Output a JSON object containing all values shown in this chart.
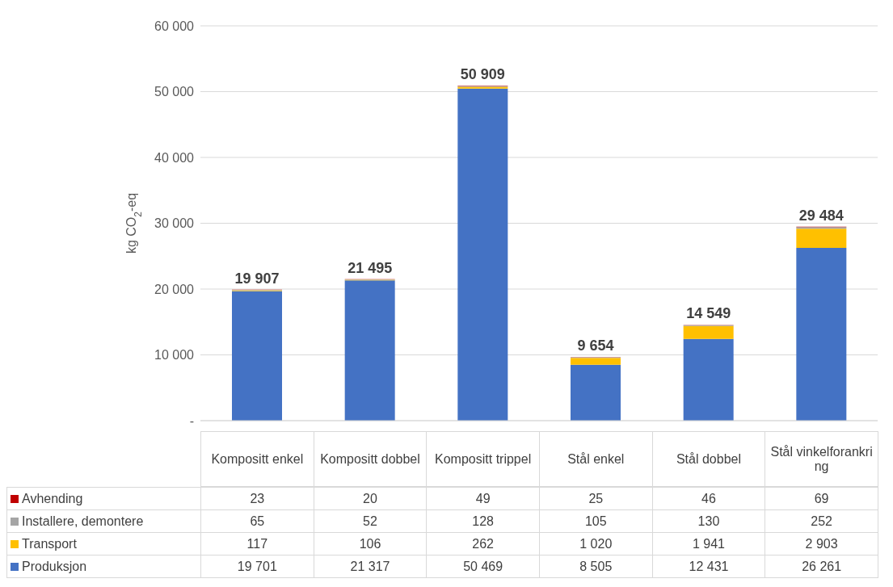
{
  "chart_data": {
    "type": "bar",
    "stacked": true,
    "ylabel": "kg CO$_{2}$-eq",
    "categories": [
      "Kompositt enkel",
      "Kompositt dobbel",
      "Kompositt trippel",
      "Stål enkel",
      "Stål dobbel",
      "Stål vinkelforankring"
    ],
    "series": [
      {
        "name": "Produksjon",
        "color": "#4472c4",
        "values": [
          19701,
          21317,
          50469,
          8505,
          12431,
          26261
        ],
        "value_labels": [
          "19 701",
          "21 317",
          "50 469",
          "8 505",
          "12 431",
          "26 261"
        ]
      },
      {
        "name": "Transport",
        "color": "#ffc000",
        "values": [
          117,
          106,
          262,
          1020,
          1941,
          2903
        ],
        "value_labels": [
          "117",
          "106",
          "262",
          "1 020",
          "1 941",
          "2 903"
        ]
      },
      {
        "name": "Installere, demontere",
        "color": "#a5a5a5",
        "values": [
          65,
          52,
          128,
          105,
          130,
          252
        ],
        "value_labels": [
          "65",
          "52",
          "128",
          "105",
          "130",
          "252"
        ]
      },
      {
        "name": "Avhending",
        "color": "#c00000",
        "values": [
          23,
          20,
          49,
          25,
          46,
          69
        ],
        "value_labels": [
          "23",
          "20",
          "49",
          "25",
          "46",
          "69"
        ]
      }
    ],
    "totals": [
      "19 907",
      "21 495",
      "50 909",
      "9 654",
      "14 549",
      "29 484"
    ],
    "ylim": [
      0,
      60000
    ],
    "yticks": [
      {
        "value": 0,
        "label": "-"
      },
      {
        "value": 10000,
        "label": "10 000"
      },
      {
        "value": 20000,
        "label": "20 000"
      },
      {
        "value": 30000,
        "label": "30 000"
      },
      {
        "value": 40000,
        "label": "40 000"
      },
      {
        "value": 50000,
        "label": "50 000"
      },
      {
        "value": 60000,
        "label": "60 000"
      }
    ],
    "grid": "y",
    "legend": "bottom"
  }
}
